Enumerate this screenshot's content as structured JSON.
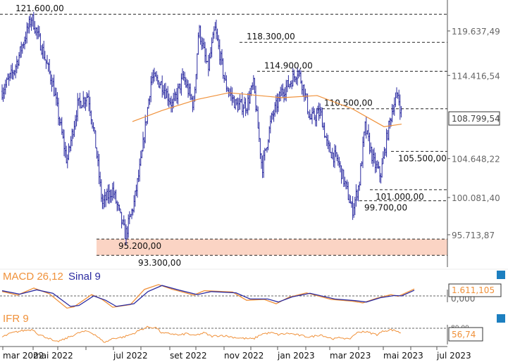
{
  "chart_data": [
    {
      "type": "ohlc",
      "title": "",
      "xlabel": "",
      "ylabel": "",
      "ylim": [
        92800,
        123500
      ],
      "y_ticks": [
        {
          "v": 119637.49,
          "label": "119.637,49"
        },
        {
          "v": 114416.54,
          "label": "114.416,54"
        },
        {
          "v": 104648.22,
          "label": "104.648,22"
        },
        {
          "v": 100081.4,
          "label": "100.081,40"
        },
        {
          "v": 95713.87,
          "label": "95.713,87"
        }
      ],
      "last_price": {
        "v": 108799.54,
        "label": "108.799,54"
      },
      "x_range": [
        0,
        635
      ],
      "x_ticks": [
        {
          "x": 4,
          "label": "mar 2022"
        },
        {
          "x": 47,
          "label": "mai 2022"
        },
        {
          "x": 82,
          "label": ""
        },
        {
          "x": 122,
          "label": ""
        },
        {
          "x": 161,
          "label": "jul 2022"
        },
        {
          "x": 200,
          "label": ""
        },
        {
          "x": 241,
          "label": "set 2022"
        },
        {
          "x": 278,
          "label": ""
        },
        {
          "x": 318,
          "label": "nov 2022"
        },
        {
          "x": 356,
          "label": ""
        },
        {
          "x": 394,
          "label": "jan 2023"
        },
        {
          "x": 434,
          "label": ""
        },
        {
          "x": 468,
          "label": "mar 2023"
        },
        {
          "x": 509,
          "label": ""
        },
        {
          "x": 544,
          "label": "mai 2023"
        },
        {
          "x": 583,
          "label": ""
        },
        {
          "x": 620,
          "label": "jul 2023"
        }
      ],
      "close_keypoints": [
        [
          3,
          112542
        ],
        [
          20,
          115017
        ],
        [
          45,
          121240
        ],
        [
          60,
          117492
        ],
        [
          75,
          113367
        ],
        [
          95,
          104292
        ],
        [
          110,
          110892
        ],
        [
          125,
          112129
        ],
        [
          135,
          106767
        ],
        [
          145,
          99342
        ],
        [
          160,
          100992
        ],
        [
          178,
          95630
        ],
        [
          190,
          99342
        ],
        [
          200,
          104292
        ],
        [
          215,
          114192
        ],
        [
          230,
          113367
        ],
        [
          245,
          110892
        ],
        [
          260,
          114192
        ],
        [
          275,
          110892
        ],
        [
          282,
          119967
        ],
        [
          295,
          115017
        ],
        [
          305,
          119967
        ],
        [
          320,
          113367
        ],
        [
          335,
          110892
        ],
        [
          350,
          110892
        ],
        [
          360,
          113367
        ],
        [
          372,
          103467
        ],
        [
          385,
          109242
        ],
        [
          400,
          112542
        ],
        [
          410,
          113367
        ],
        [
          423,
          115017
        ],
        [
          432,
          112542
        ],
        [
          440,
          109242
        ],
        [
          455,
          110067
        ],
        [
          465,
          105942
        ],
        [
          480,
          104292
        ],
        [
          492,
          100992
        ],
        [
          500,
          98517
        ],
        [
          510,
          101817
        ],
        [
          518,
          108417
        ],
        [
          530,
          104292
        ],
        [
          540,
          102642
        ],
        [
          550,
          107592
        ],
        [
          558,
          110892
        ],
        [
          565,
          112129
        ],
        [
          570,
          109654
        ]
      ],
      "ma200": [
        [
          188,
          109000
        ],
        [
          230,
          110300
        ],
        [
          280,
          111600
        ],
        [
          325,
          112380
        ],
        [
          400,
          111800
        ],
        [
          450,
          112050
        ],
        [
          500,
          110500
        ],
        [
          545,
          108400
        ],
        [
          570,
          108700
        ]
      ],
      "levels": [
        {
          "v": 121600,
          "label": "121.600,00",
          "from": 0
        },
        {
          "v": 118300,
          "label": "118.300,00",
          "from": 340
        },
        {
          "v": 114900,
          "label": "114.900,00",
          "from": 365
        },
        {
          "v": 110500,
          "label": "110.500,00",
          "from": 450
        },
        {
          "v": 105500,
          "label": "105.500,00",
          "from": 555
        },
        {
          "v": 101000,
          "label": "101.000,00",
          "from": 525
        },
        {
          "v": 99700,
          "label": "99.700,00",
          "from": 510
        }
      ],
      "zone": {
        "low": 93300,
        "high": 95200,
        "low_label": "93.300,00",
        "high_label": "95.200,00"
      }
    },
    {
      "type": "line",
      "title": "MACD 26,12",
      "signal_title": "Sinal 9",
      "last_label": "1.611,105",
      "zero_label": "0,000",
      "macd": [
        [
          3,
          1.0
        ],
        [
          25,
          0.2
        ],
        [
          48,
          1.8
        ],
        [
          70,
          0.5
        ],
        [
          95,
          -2.8
        ],
        [
          105,
          -2.5
        ],
        [
          130,
          0.3
        ],
        [
          145,
          -0.8
        ],
        [
          160,
          -2.6
        ],
        [
          185,
          -2.0
        ],
        [
          205,
          1.5
        ],
        [
          225,
          2.6
        ],
        [
          245,
          1.5
        ],
        [
          275,
          0.2
        ],
        [
          290,
          1.2
        ],
        [
          330,
          0.9
        ],
        [
          350,
          -1.0
        ],
        [
          375,
          -0.8
        ],
        [
          392,
          -1.8
        ],
        [
          410,
          -0.3
        ],
        [
          435,
          0.7
        ],
        [
          470,
          -0.8
        ],
        [
          500,
          -1.2
        ],
        [
          515,
          -1.6
        ],
        [
          535,
          -0.5
        ],
        [
          555,
          0.3
        ],
        [
          565,
          -0.1
        ],
        [
          580,
          1.0
        ],
        [
          588,
          1.6
        ]
      ],
      "signal": [
        [
          3,
          1.2
        ],
        [
          28,
          0.4
        ],
        [
          52,
          1.4
        ],
        [
          75,
          0.6
        ],
        [
          100,
          -2.4
        ],
        [
          112,
          -2.2
        ],
        [
          133,
          0.0
        ],
        [
          150,
          -1.0
        ],
        [
          165,
          -2.4
        ],
        [
          190,
          -1.8
        ],
        [
          210,
          1.0
        ],
        [
          230,
          2.4
        ],
        [
          255,
          1.3
        ],
        [
          280,
          0.3
        ],
        [
          300,
          1.0
        ],
        [
          335,
          0.7
        ],
        [
          355,
          -0.7
        ],
        [
          380,
          -0.7
        ],
        [
          395,
          -1.4
        ],
        [
          415,
          -0.2
        ],
        [
          440,
          0.6
        ],
        [
          475,
          -0.7
        ],
        [
          505,
          -1.1
        ],
        [
          520,
          -1.4
        ],
        [
          540,
          -0.4
        ],
        [
          560,
          0.1
        ],
        [
          570,
          0.0
        ],
        [
          588,
          1.3
        ]
      ]
    },
    {
      "type": "line",
      "title": "IFR 9",
      "last_label": "56,74",
      "upper_label": "80,00",
      "rsi": [
        [
          3,
          45
        ],
        [
          15,
          60
        ],
        [
          30,
          70
        ],
        [
          47,
          75
        ],
        [
          55,
          55
        ],
        [
          70,
          40
        ],
        [
          78,
          25
        ],
        [
          90,
          35
        ],
        [
          100,
          48
        ],
        [
          115,
          65
        ],
        [
          125,
          68
        ],
        [
          135,
          55
        ],
        [
          145,
          30
        ],
        [
          150,
          25
        ],
        [
          160,
          40
        ],
        [
          175,
          45
        ],
        [
          190,
          60
        ],
        [
          200,
          75
        ],
        [
          210,
          85
        ],
        [
          222,
          82
        ],
        [
          230,
          60
        ],
        [
          245,
          58
        ],
        [
          255,
          52
        ],
        [
          265,
          60
        ],
        [
          275,
          50
        ],
        [
          290,
          62
        ],
        [
          300,
          48
        ],
        [
          315,
          52
        ],
        [
          330,
          45
        ],
        [
          345,
          40
        ],
        [
          360,
          38
        ],
        [
          372,
          58
        ],
        [
          385,
          62
        ],
        [
          395,
          55
        ],
        [
          410,
          60
        ],
        [
          425,
          52
        ],
        [
          440,
          45
        ],
        [
          455,
          55
        ],
        [
          465,
          44
        ],
        [
          475,
          38
        ],
        [
          485,
          44
        ],
        [
          495,
          35
        ],
        [
          505,
          60
        ],
        [
          515,
          68
        ],
        [
          525,
          62
        ],
        [
          535,
          55
        ],
        [
          545,
          70
        ],
        [
          555,
          74
        ],
        [
          565,
          68
        ],
        [
          570,
          57
        ]
      ]
    }
  ]
}
